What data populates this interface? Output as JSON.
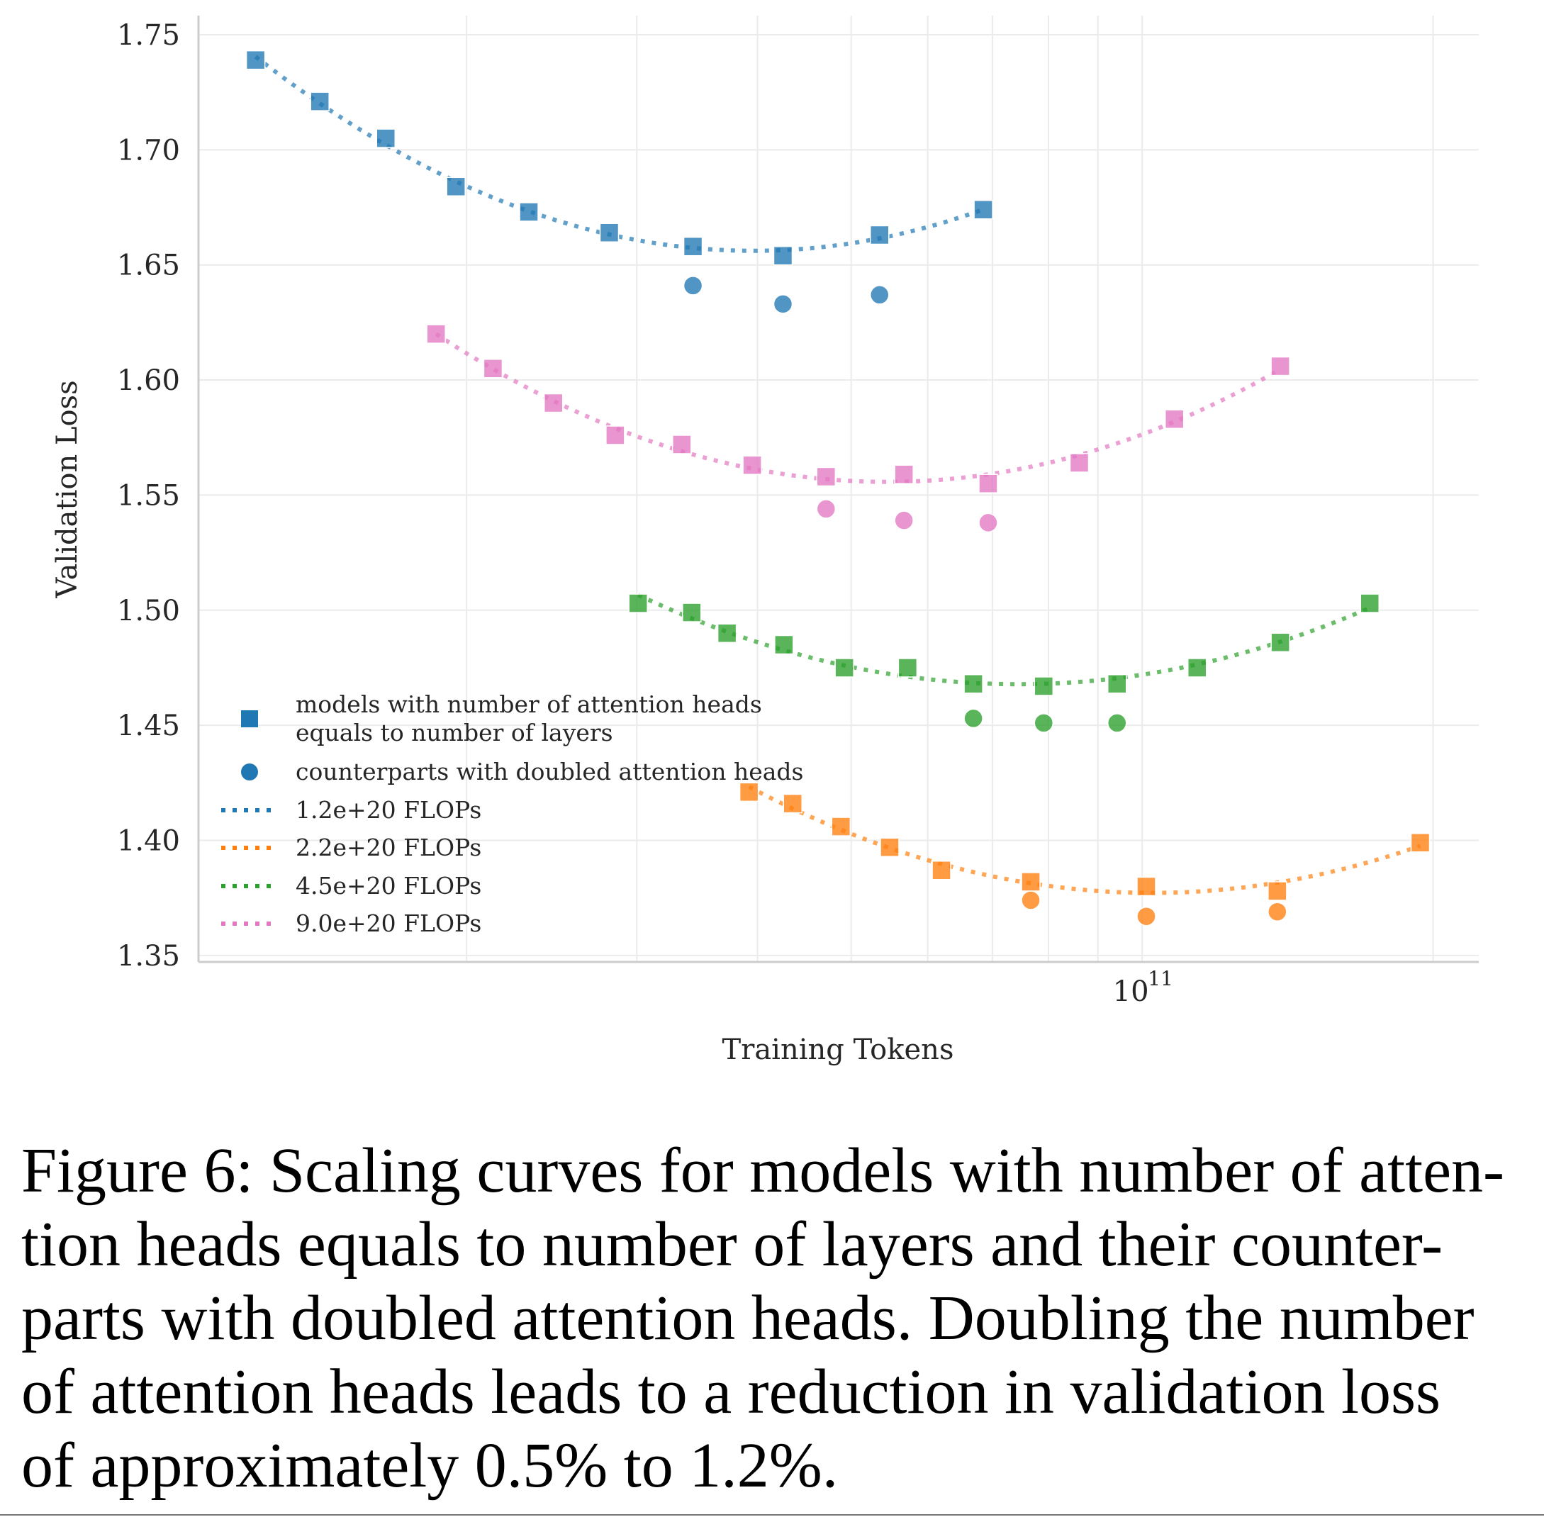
{
  "chart_data": {
    "type": "scatter",
    "title": "",
    "xlabel": "Training Tokens",
    "ylabel": "Validation Loss",
    "xscale": "log",
    "xlim": [
      10560000000.0,
      223000000000.0
    ],
    "ylim": [
      1.3472,
      1.7583
    ],
    "x_ticks": [
      {
        "value": 100000000000.0,
        "label": "10",
        "exp": "11"
      }
    ],
    "x_minor_gridlines": [
      20000000000.0,
      30000000000.0,
      40000000000.0,
      50000000000.0,
      60000000000.0,
      70000000000.0,
      80000000000.0,
      90000000000.0,
      200000000000.0
    ],
    "y_ticks": [
      1.35,
      1.4,
      1.45,
      1.5,
      1.55,
      1.6,
      1.65,
      1.7,
      1.75
    ],
    "y_tick_labels": [
      "1.35",
      "1.40",
      "1.45",
      "1.50",
      "1.55",
      "1.60",
      "1.65",
      "1.70",
      "1.75"
    ],
    "grid": true,
    "legend_position": "lower-left",
    "legend": [
      {
        "kind": "square",
        "color": "#1f77b4",
        "label_lines": [
          "models with number of attention heads",
          "equals to number of layers"
        ]
      },
      {
        "kind": "circle",
        "color": "#1f77b4",
        "label_lines": [
          "counterparts with doubled attention heads"
        ]
      },
      {
        "kind": "dotted",
        "color": "#1f77b4",
        "label_lines": [
          "1.2e+20 FLOPs"
        ]
      },
      {
        "kind": "dotted",
        "color": "#ff7f0e",
        "label_lines": [
          "2.2e+20 FLOPs"
        ]
      },
      {
        "kind": "dotted",
        "color": "#2ca02c",
        "label_lines": [
          "4.5e+20 FLOPs"
        ]
      },
      {
        "kind": "dotted",
        "color": "#e377c2",
        "label_lines": [
          "9.0e+20 FLOPs"
        ]
      }
    ],
    "series": [
      {
        "name": "1.2e+20 FLOPs",
        "color": "#1f77b4",
        "squares": {
          "x": [
            12100000000.0,
            14100000000.0,
            16500000000.0,
            19500000000.0,
            23200000000.0,
            28100000000.0,
            34300000000.0,
            42500000000.0,
            53500000000.0,
            68500000000.0
          ],
          "y": [
            1.739,
            1.721,
            1.705,
            1.684,
            1.673,
            1.664,
            1.658,
            1.654,
            1.663,
            1.674
          ]
        },
        "circles": {
          "x": [
            34300000000.0,
            42500000000.0,
            53500000000.0
          ],
          "y": [
            1.641,
            1.633,
            1.637
          ]
        }
      },
      {
        "name": "2.2e+20 FLOPs",
        "color": "#ff7f0e",
        "squares": {
          "x": [
            39200000000.0,
            43500000000.0,
            48800000000.0,
            54800000000.0,
            62000000000.0,
            76700000000.0,
            101000000000.0,
            138000000000.0,
            194000000000.0
          ],
          "y": [
            1.421,
            1.416,
            1.406,
            1.397,
            1.387,
            1.382,
            1.38,
            1.378,
            1.399
          ]
        },
        "circles": {
          "x": [
            76700000000.0,
            101000000000.0,
            138000000000.0
          ],
          "y": [
            1.374,
            1.367,
            1.369
          ]
        }
      },
      {
        "name": "4.5e+20 FLOPs",
        "color": "#2ca02c",
        "squares": {
          "x": [
            30100000000.0,
            34200000000.0,
            37200000000.0,
            42600000000.0,
            49200000000.0,
            57200000000.0,
            66900000000.0,
            79100000000.0,
            94200000000.0,
            114000000000.0,
            139000000000.0,
            172000000000.0
          ],
          "y": [
            1.503,
            1.499,
            1.49,
            1.485,
            1.475,
            1.475,
            1.468,
            1.467,
            1.468,
            1.475,
            1.486,
            1.503
          ]
        },
        "circles": {
          "x": [
            66900000000.0,
            79100000000.0,
            94200000000.0
          ],
          "y": [
            1.453,
            1.451,
            1.451
          ]
        }
      },
      {
        "name": "9.0e+20 FLOPs",
        "color": "#e377c2",
        "squares": {
          "x": [
            18600000000.0,
            21300000000.0,
            24600000000.0,
            28500000000.0,
            33400000000.0,
            39500000000.0,
            47100000000.0,
            56700000000.0,
            69300000000.0,
            86100000000.0,
            108000000000.0,
            139000000000.0
          ],
          "y": [
            1.62,
            1.605,
            1.59,
            1.576,
            1.572,
            1.563,
            1.558,
            1.559,
            1.555,
            1.564,
            1.583,
            1.606
          ]
        },
        "circles": {
          "x": [
            47100000000.0,
            56700000000.0,
            69300000000.0
          ],
          "y": [
            1.544,
            1.539,
            1.538
          ]
        }
      }
    ]
  },
  "caption": {
    "lines": [
      "Figure 6: Scaling curves for models with number of atten-",
      "tion heads equals to number of layers and their counter-",
      "parts with doubled attention heads. Doubling the number",
      "of attention heads leads to a reduction in validation loss",
      "of approximately 0.5% to 1.2%."
    ]
  }
}
